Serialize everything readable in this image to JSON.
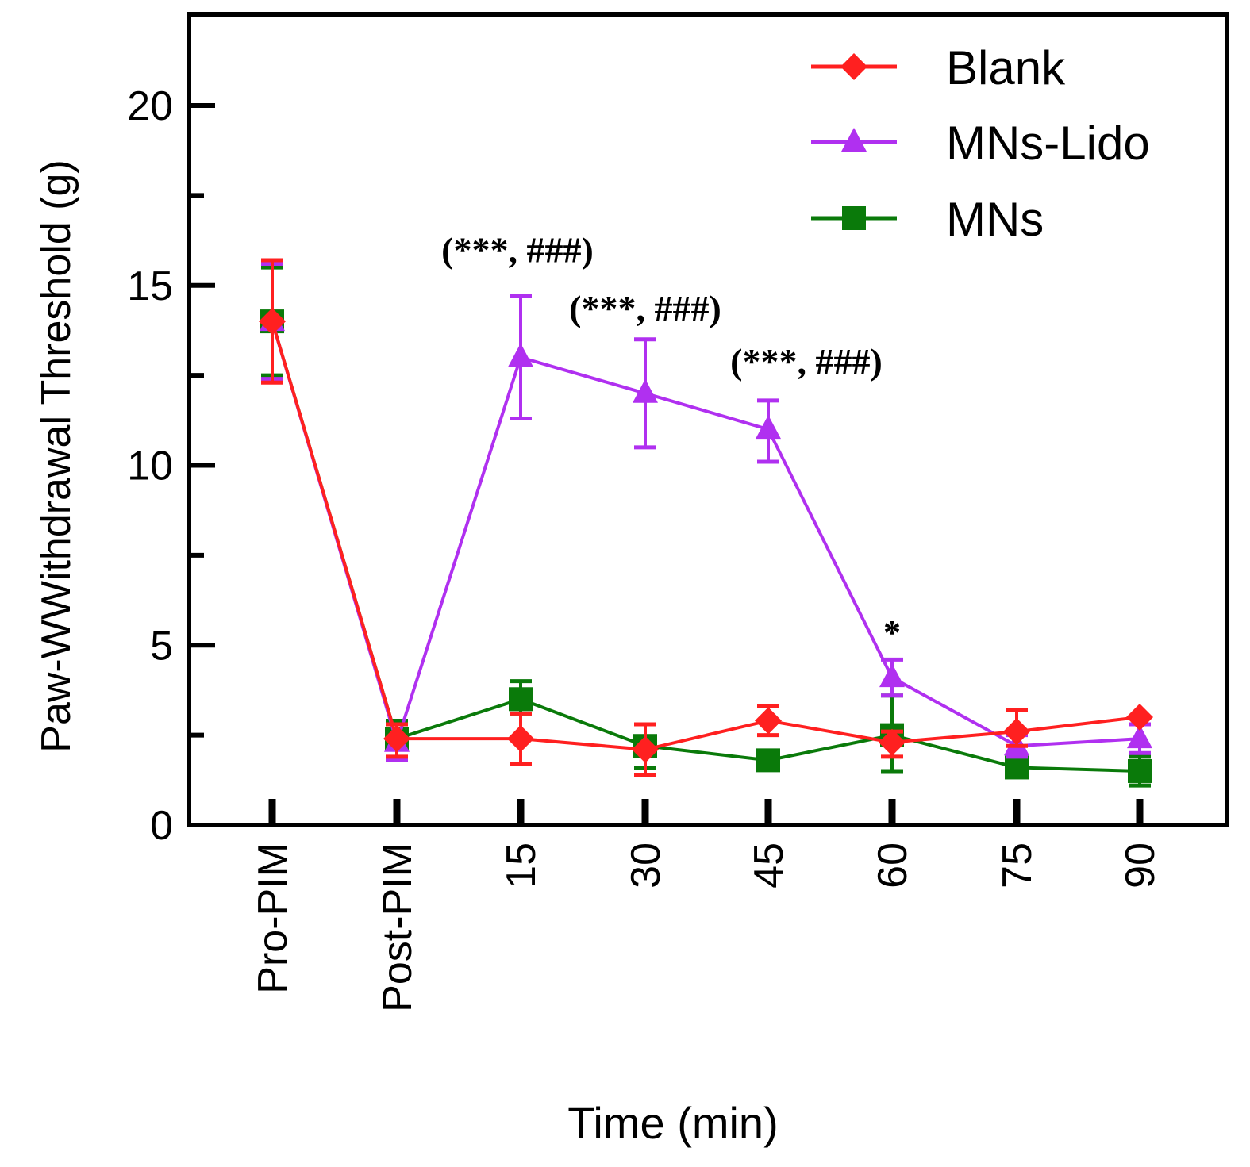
{
  "chart_data": {
    "type": "line",
    "title": "",
    "xlabel": "Time (min)",
    "ylabel": "Paw-WWithdrawal Threshold (g)",
    "categories": [
      "Pro-PIM",
      "Post-PIM",
      "15",
      "30",
      "45",
      "60",
      "75",
      "90"
    ],
    "ylim": [
      0,
      22.5
    ],
    "yticks": [
      0,
      5,
      10,
      15,
      20
    ],
    "yminor_ticks": [
      2.5,
      7.5,
      12.5,
      17.5
    ],
    "grid": false,
    "legend_position": "top-right",
    "series": [
      {
        "name": "Blank",
        "color": "#ff2020",
        "marker": "diamond",
        "values": [
          14.0,
          2.4,
          2.4,
          2.1,
          2.9,
          2.3,
          2.6,
          3.0
        ],
        "err_low": [
          12.3,
          1.9,
          1.7,
          1.4,
          2.5,
          1.9,
          2.2,
          3.0
        ],
        "err_high": [
          15.7,
          2.8,
          3.1,
          2.8,
          3.3,
          2.6,
          3.2,
          3.0
        ]
      },
      {
        "name": "MNs-Lido",
        "color": "#b030f0",
        "marker": "triangle",
        "values": [
          14.0,
          2.3,
          13.0,
          12.0,
          11.0,
          4.1,
          2.2,
          2.4
        ],
        "err_low": [
          12.4,
          1.8,
          11.3,
          10.5,
          10.1,
          3.6,
          1.9,
          2.0
        ],
        "err_high": [
          15.6,
          2.8,
          14.7,
          13.5,
          11.8,
          4.6,
          2.5,
          2.8
        ]
      },
      {
        "name": "MNs",
        "color": "#0a7a0a",
        "marker": "square",
        "values": [
          14.0,
          2.4,
          3.5,
          2.2,
          1.8,
          2.5,
          1.6,
          1.5
        ],
        "err_low": [
          12.5,
          1.8,
          3.1,
          1.6,
          1.8,
          1.5,
          1.6,
          1.1
        ],
        "err_high": [
          15.5,
          2.9,
          4.0,
          2.8,
          1.8,
          3.6,
          1.6,
          1.9
        ]
      }
    ],
    "annotations": [
      {
        "text": "(***, ###)",
        "category": "15",
        "series": "MNs-Lido"
      },
      {
        "text": "(***, ###)",
        "category": "30",
        "series": "MNs-Lido"
      },
      {
        "text": "(***, ###)",
        "category": "45",
        "series": "MNs-Lido"
      },
      {
        "text": "*",
        "category": "60",
        "series": "MNs-Lido"
      }
    ]
  }
}
